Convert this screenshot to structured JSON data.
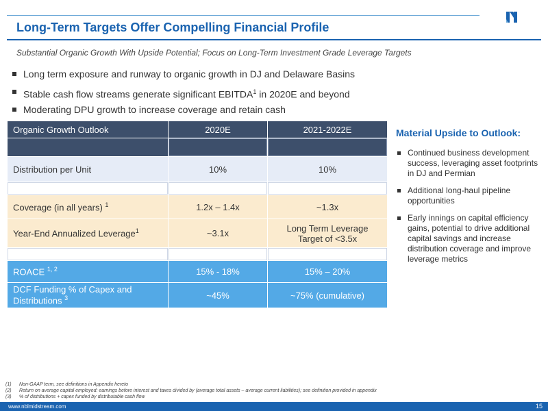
{
  "header": {
    "title": "Long-Term Targets Offer Compelling Financial Profile",
    "subtitle": "Substantial Organic Growth With Upside Potential; Focus on Long-Term Investment Grade Leverage Targets",
    "logo_icon": "nbl-logo-icon",
    "brand_color": "#1a63b0"
  },
  "bullets": [
    {
      "text": "Long term exposure and runway to organic growth in DJ and Delaware Basins"
    },
    {
      "text_pre": "Stable cash flow streams generate significant EBITDA",
      "sup": "1",
      "text_post": " in 2020E and beyond"
    },
    {
      "text": "Moderating DPU growth to increase coverage and retain cash"
    }
  ],
  "table": {
    "header": [
      "Organic Growth Outlook",
      "2020E",
      "2021-2022E"
    ],
    "rows": [
      {
        "label": "Distribution per Unit",
        "c2020": "10%",
        "c2021": "10%"
      },
      {
        "label": "Coverage (in all years) ",
        "label_sup": "1",
        "c2020": "1.2x – 1.4x",
        "c2021": "~1.3x"
      },
      {
        "label": "Year-End Annualized Leverage",
        "label_sup": "1",
        "c2020": "~3.1x",
        "c2021": "Long Term Leverage Target of <3.5x"
      },
      {
        "label": "ROACE ",
        "label_sup": "1, 2",
        "c2020": "15% - 18%",
        "c2021": "15% – 20%"
      },
      {
        "label": "DCF Funding % of Capex and Distributions ",
        "label_sup": "3",
        "c2020": "~45%",
        "c2021": "~75% (cumulative)"
      }
    ],
    "colors": {
      "header": "#3d4f6b",
      "blue_light": "#e6ecf7",
      "tan": "#fbebcf",
      "blue": "#53a9e6"
    }
  },
  "sidebar": {
    "title": "Material Upside to Outlook:",
    "items": [
      "Continued business development success, leveraging asset footprints in DJ and Permian",
      "Additional long-haul pipeline opportunities",
      "Early innings on capital efficiency gains, potential to drive additional capital savings and increase distribution coverage and improve leverage metrics"
    ]
  },
  "footnotes": [
    {
      "num": "(1)",
      "text": "Non-GAAP term, see definitions in Appendix hereto"
    },
    {
      "num": "(2)",
      "text": "Return on average capital employed: earnings before interest and taxes divided by (average total assets – average current liabilities); see definition provided in appendix"
    },
    {
      "num": "(3)",
      "text": "% of distributions + capex funded by distributable cash flow"
    }
  ],
  "footer": {
    "url": "www.nblmidstream.com",
    "page_number": "15"
  }
}
